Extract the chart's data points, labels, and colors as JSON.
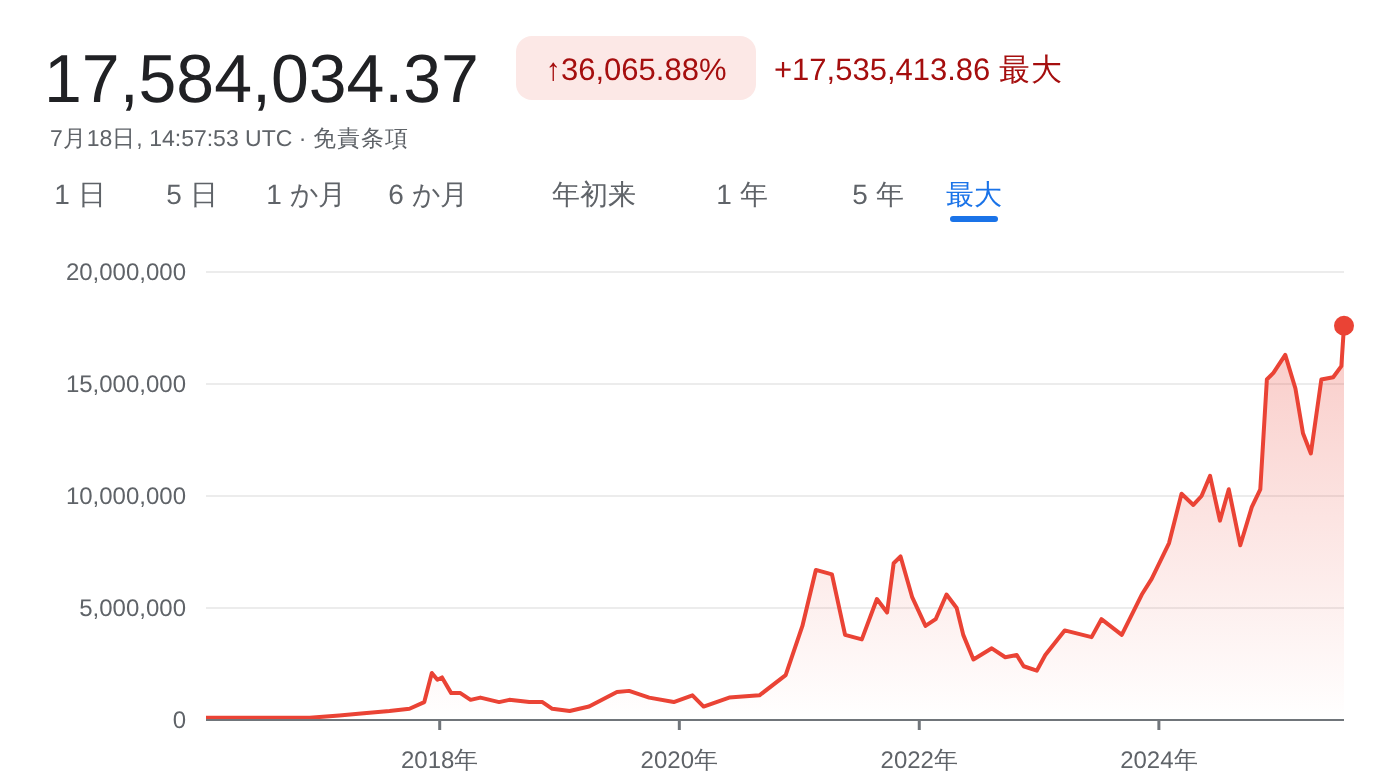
{
  "chart_data": {
    "type": "area",
    "title": "17,584,034.37",
    "subtitle": "↑36,065.88%",
    "annotations": [
      "+17,535,413.86 最大",
      "7月18日, 14:57:53 UTC · 免責条項",
      "1 日",
      "5 日",
      "1 か月",
      "6 か月",
      "年初来",
      "1 年",
      "5 年",
      "最大"
    ],
    "series": [
      {
        "color": "#ea4335",
        "x": [
          "2016-01-20",
          "2016-06-01",
          "2016-12-01",
          "2017-03-01",
          "2017-05-15",
          "2017-08-01",
          "2017-10-01",
          "2017-11-15",
          "2017-12-08",
          "2017-12-25",
          "2018-01-08",
          "2018-02-05",
          "2018-03-05",
          "2018-04-05",
          "2018-05-05",
          "2018-07-01",
          "2018-08-01",
          "2018-10-01",
          "2018-11-10",
          "2018-12-10",
          "2019-02-01",
          "2019-04-01",
          "2019-06-25",
          "2019-08-01",
          "2019-10-01",
          "2019-12-15",
          "2020-02-10",
          "2020-03-15",
          "2020-06-01",
          "2020-09-01",
          "2020-11-20",
          "2021-01-10",
          "2021-02-20",
          "2021-04-10",
          "2021-05-20",
          "2021-07-10",
          "2021-08-25",
          "2021-09-25",
          "2021-10-15",
          "2021-11-05",
          "2021-12-10",
          "2022-01-20",
          "2022-02-20",
          "2022-03-25",
          "2022-04-25",
          "2022-05-15",
          "2022-06-15",
          "2022-08-10",
          "2022-09-20",
          "2022-10-25",
          "2022-11-15",
          "2022-12-25",
          "2023-01-20",
          "2023-03-20",
          "2023-06-10",
          "2023-07-10",
          "2023-09-10",
          "2023-11-10",
          "2023-12-10",
          "2024-02-01",
          "2024-03-10",
          "2024-04-15",
          "2024-05-10",
          "2024-06-05",
          "2024-07-05",
          "2024-08-01",
          "2024-09-05",
          "2024-10-10",
          "2024-11-05",
          "2024-11-25",
          "2024-12-15",
          "2025-01-20",
          "2025-02-20",
          "2025-03-15",
          "2025-04-08",
          "2025-05-10",
          "2025-06-15",
          "2025-07-10",
          "2025-07-18"
        ],
        "values": [
          100000,
          100000,
          100000,
          200000,
          300000,
          400000,
          500000,
          800000,
          2100000,
          1800000,
          1900000,
          1200000,
          1200000,
          900000,
          1000000,
          800000,
          900000,
          800000,
          800000,
          500000,
          400000,
          600000,
          1250000,
          1300000,
          1000000,
          800000,
          1100000,
          600000,
          1000000,
          1100000,
          2000000,
          4200000,
          6700000,
          6500000,
          3800000,
          3600000,
          5400000,
          4800000,
          7000000,
          7300000,
          5500000,
          4200000,
          4500000,
          5600000,
          5000000,
          3800000,
          2700000,
          3200000,
          2800000,
          2900000,
          2400000,
          2200000,
          2900000,
          4000000,
          3700000,
          4500000,
          3800000,
          5600000,
          6300000,
          7900000,
          10100000,
          9600000,
          10000000,
          10900000,
          8900000,
          10300000,
          7800000,
          9500000,
          10300000,
          15200000,
          15500000,
          16300000,
          14800000,
          12800000,
          11900000,
          15200000,
          15300000,
          15800000,
          17600000
        ]
      },
      {
        "type": "scatter",
        "marker": "circle",
        "color": "#ea4335",
        "x": [
          "2025-07-18"
        ],
        "values": [
          17600000
        ]
      }
    ],
    "xlim": [
      "2016-01-20",
      "2025-07-18"
    ],
    "xticks": [
      {
        "value": "2018-01-01",
        "label": "2018年"
      },
      {
        "value": "2020-01-01",
        "label": "2020年"
      },
      {
        "value": "2022-01-01",
        "label": "2022年"
      },
      {
        "value": "2024-01-01",
        "label": "2024年"
      }
    ],
    "ylim": [
      0,
      20000000
    ],
    "yticks": [
      {
        "value": 0,
        "label": "0"
      },
      {
        "value": 5000000,
        "label": "5,000,000"
      },
      {
        "value": 10000000,
        "label": "10,000,000"
      },
      {
        "value": 15000000,
        "label": "15,000,000"
      },
      {
        "value": 20000000,
        "label": "20,000,000"
      }
    ],
    "grid": "y",
    "marker": "none"
  }
}
